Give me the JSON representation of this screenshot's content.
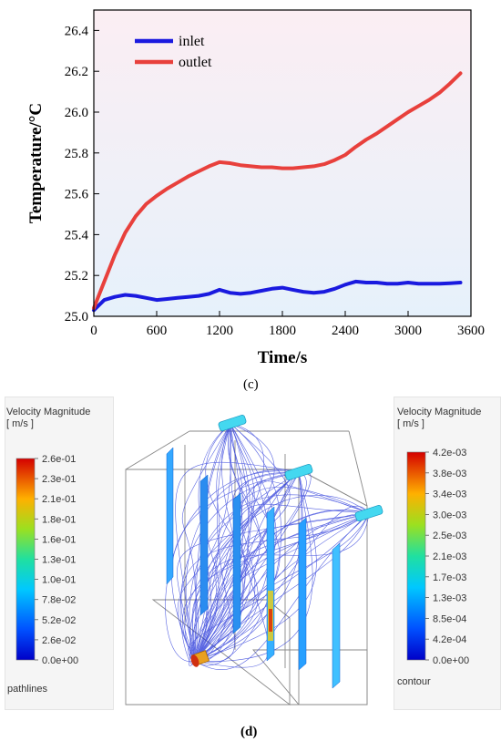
{
  "chart_data": [
    {
      "type": "line",
      "title": "",
      "xlabel": "Time/s",
      "ylabel": "Temperature/°C",
      "xlim": [
        0,
        3600
      ],
      "ylim": [
        25.0,
        26.5
      ],
      "x_ticks": [
        "0",
        "600",
        "1200",
        "1800",
        "2400",
        "3000",
        "3600"
      ],
      "y_ticks": [
        "25.0",
        "25.2",
        "25.4",
        "25.6",
        "25.8",
        "26.0",
        "26.2",
        "26.4"
      ],
      "legend_position": "top-left",
      "grid": false,
      "series": [
        {
          "name": "inlet",
          "color": "#1a1adf",
          "x": [
            0,
            100,
            200,
            300,
            400,
            500,
            600,
            700,
            800,
            900,
            1000,
            1100,
            1200,
            1300,
            1400,
            1500,
            1600,
            1700,
            1800,
            1900,
            2000,
            2100,
            2200,
            2300,
            2400,
            2500,
            2600,
            2700,
            2800,
            2900,
            3000,
            3100,
            3200,
            3300,
            3400,
            3500
          ],
          "y": [
            25.03,
            25.08,
            25.095,
            25.105,
            25.1,
            25.09,
            25.08,
            25.085,
            25.09,
            25.095,
            25.1,
            25.11,
            25.13,
            25.115,
            25.11,
            25.115,
            25.125,
            25.135,
            25.14,
            25.13,
            25.12,
            25.115,
            25.12,
            25.135,
            25.155,
            25.17,
            25.165,
            25.165,
            25.16,
            25.16,
            25.165,
            25.16,
            25.16,
            25.16,
            25.162,
            25.165
          ]
        },
        {
          "name": "outlet",
          "color": "#e8403c",
          "x": [
            0,
            100,
            200,
            300,
            400,
            500,
            600,
            700,
            800,
            900,
            1000,
            1100,
            1200,
            1300,
            1400,
            1500,
            1600,
            1700,
            1800,
            1900,
            2000,
            2100,
            2200,
            2300,
            2400,
            2500,
            2600,
            2700,
            2800,
            2900,
            3000,
            3100,
            3200,
            3300,
            3400,
            3500
          ],
          "y": [
            25.04,
            25.17,
            25.3,
            25.41,
            25.49,
            25.55,
            25.59,
            25.625,
            25.655,
            25.685,
            25.71,
            25.735,
            25.755,
            25.75,
            25.74,
            25.735,
            25.73,
            25.73,
            25.725,
            25.725,
            25.73,
            25.735,
            25.745,
            25.765,
            25.79,
            25.83,
            25.865,
            25.895,
            25.93,
            25.965,
            26.0,
            26.03,
            26.06,
            26.095,
            26.14,
            26.19
          ]
        }
      ]
    },
    {
      "type": "other",
      "caption": "(d)",
      "legends": [
        {
          "title_line1": "Velocity Magnitude",
          "title_line2": "[ m/s ]",
          "ticks": [
            "2.6e-01",
            "2.3e-01",
            "2.1e-01",
            "1.8e-01",
            "1.6e-01",
            "1.3e-01",
            "1.0e-01",
            "7.8e-02",
            "5.2e-02",
            "2.6e-02",
            "0.0e+00"
          ],
          "footer": "pathlines"
        },
        {
          "title_line1": "Velocity Magnitude",
          "title_line2": "[ m/s ]",
          "ticks": [
            "4.2e-03",
            "3.8e-03",
            "3.4e-03",
            "3.0e-03",
            "2.5e-03",
            "2.1e-03",
            "1.7e-03",
            "1.3e-03",
            "8.5e-04",
            "4.2e-04",
            "0.0e+00"
          ],
          "footer": "contour"
        }
      ]
    }
  ],
  "captions": {
    "c": "(c)",
    "d": "(d)"
  }
}
